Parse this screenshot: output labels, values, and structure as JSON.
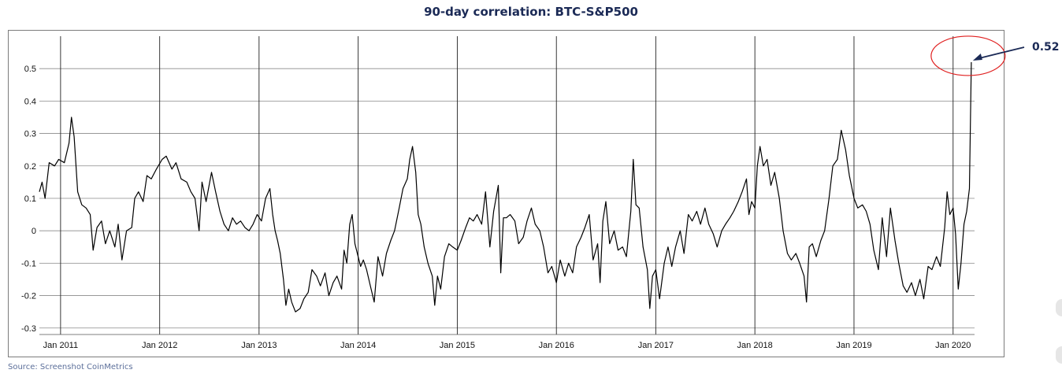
{
  "chart_data": {
    "type": "line",
    "title": "90-day correlation: BTC-S&P500",
    "xlabel": "",
    "ylabel": "",
    "x_ticks": [
      "Jan 2011",
      "Jan 2012",
      "Jan 2013",
      "Jan 2014",
      "Jan 2015",
      "Jan 2016",
      "Jan 2017",
      "Jan 2018",
      "Jan 2019",
      "Jan 2020"
    ],
    "y_ticks": [
      "0.5",
      "0.4",
      "0.3",
      "0.2",
      "0.1",
      "0",
      "-0.1",
      "-0.2",
      "-0.3"
    ],
    "ylim": [
      -0.32,
      0.6
    ],
    "xlim": [
      "2010-10-15",
      "2020-03-20"
    ],
    "grid": true,
    "series": [
      {
        "values": [
          [
            "2010-10-15",
            0.12
          ],
          [
            "2010-10-25",
            0.15
          ],
          [
            "2010-11-05",
            0.1
          ],
          [
            "2010-11-20",
            0.21
          ],
          [
            "2010-12-10",
            0.2
          ],
          [
            "2010-12-25",
            0.22
          ],
          [
            "2011-01-15",
            0.21
          ],
          [
            "2011-02-01",
            0.27
          ],
          [
            "2011-02-10",
            0.35
          ],
          [
            "2011-02-20",
            0.29
          ],
          [
            "2011-03-05",
            0.12
          ],
          [
            "2011-03-20",
            0.08
          ],
          [
            "2011-04-05",
            0.07
          ],
          [
            "2011-04-20",
            0.05
          ],
          [
            "2011-05-01",
            -0.06
          ],
          [
            "2011-05-15",
            0.01
          ],
          [
            "2011-06-01",
            0.03
          ],
          [
            "2011-06-15",
            -0.04
          ],
          [
            "2011-07-01",
            0.0
          ],
          [
            "2011-07-20",
            -0.05
          ],
          [
            "2011-08-01",
            0.02
          ],
          [
            "2011-08-15",
            -0.09
          ],
          [
            "2011-09-01",
            0.0
          ],
          [
            "2011-09-20",
            0.01
          ],
          [
            "2011-10-01",
            0.1
          ],
          [
            "2011-10-15",
            0.12
          ],
          [
            "2011-11-01",
            0.09
          ],
          [
            "2011-11-15",
            0.17
          ],
          [
            "2011-12-01",
            0.16
          ],
          [
            "2011-12-20",
            0.19
          ],
          [
            "2012-01-10",
            0.22
          ],
          [
            "2012-01-25",
            0.23
          ],
          [
            "2012-02-15",
            0.19
          ],
          [
            "2012-03-01",
            0.21
          ],
          [
            "2012-03-20",
            0.16
          ],
          [
            "2012-04-10",
            0.15
          ],
          [
            "2012-04-25",
            0.12
          ],
          [
            "2012-05-10",
            0.1
          ],
          [
            "2012-05-25",
            0.0
          ],
          [
            "2012-06-05",
            0.15
          ],
          [
            "2012-06-20",
            0.09
          ],
          [
            "2012-07-10",
            0.18
          ],
          [
            "2012-07-25",
            0.12
          ],
          [
            "2012-08-10",
            0.06
          ],
          [
            "2012-08-25",
            0.02
          ],
          [
            "2012-09-10",
            0.0
          ],
          [
            "2012-09-25",
            0.04
          ],
          [
            "2012-10-10",
            0.02
          ],
          [
            "2012-10-25",
            0.03
          ],
          [
            "2012-11-10",
            0.01
          ],
          [
            "2012-11-25",
            0.0
          ],
          [
            "2012-12-10",
            0.02
          ],
          [
            "2012-12-25",
            0.05
          ],
          [
            "2013-01-10",
            0.03
          ],
          [
            "2013-01-25",
            0.1
          ],
          [
            "2013-02-10",
            0.13
          ],
          [
            "2013-02-20",
            0.05
          ],
          [
            "2013-03-01",
            0.0
          ],
          [
            "2013-03-10",
            -0.03
          ],
          [
            "2013-03-20",
            -0.07
          ],
          [
            "2013-04-01",
            -0.15
          ],
          [
            "2013-04-10",
            -0.23
          ],
          [
            "2013-04-20",
            -0.18
          ],
          [
            "2013-05-01",
            -0.22
          ],
          [
            "2013-05-15",
            -0.25
          ],
          [
            "2013-06-01",
            -0.24
          ],
          [
            "2013-06-15",
            -0.21
          ],
          [
            "2013-07-01",
            -0.19
          ],
          [
            "2013-07-15",
            -0.12
          ],
          [
            "2013-08-01",
            -0.14
          ],
          [
            "2013-08-15",
            -0.17
          ],
          [
            "2013-09-01",
            -0.13
          ],
          [
            "2013-09-15",
            -0.2
          ],
          [
            "2013-10-01",
            -0.16
          ],
          [
            "2013-10-15",
            -0.14
          ],
          [
            "2013-11-01",
            -0.18
          ],
          [
            "2013-11-10",
            -0.06
          ],
          [
            "2013-11-20",
            -0.1
          ],
          [
            "2013-12-01",
            0.02
          ],
          [
            "2013-12-10",
            0.05
          ],
          [
            "2013-12-20",
            -0.04
          ],
          [
            "2014-01-01",
            -0.08
          ],
          [
            "2014-01-10",
            -0.11
          ],
          [
            "2014-01-20",
            -0.09
          ],
          [
            "2014-02-01",
            -0.12
          ],
          [
            "2014-02-15",
            -0.17
          ],
          [
            "2014-03-01",
            -0.22
          ],
          [
            "2014-03-15",
            -0.08
          ],
          [
            "2014-04-01",
            -0.14
          ],
          [
            "2014-04-15",
            -0.07
          ],
          [
            "2014-05-01",
            -0.03
          ],
          [
            "2014-05-15",
            0.0
          ],
          [
            "2014-06-01",
            0.07
          ],
          [
            "2014-06-15",
            0.13
          ],
          [
            "2014-07-01",
            0.16
          ],
          [
            "2014-07-10",
            0.22
          ],
          [
            "2014-07-20",
            0.26
          ],
          [
            "2014-08-01",
            0.18
          ],
          [
            "2014-08-10",
            0.05
          ],
          [
            "2014-08-20",
            0.02
          ],
          [
            "2014-09-01",
            -0.05
          ],
          [
            "2014-09-15",
            -0.1
          ],
          [
            "2014-10-01",
            -0.14
          ],
          [
            "2014-10-10",
            -0.23
          ],
          [
            "2014-10-20",
            -0.14
          ],
          [
            "2014-11-01",
            -0.18
          ],
          [
            "2014-11-15",
            -0.08
          ],
          [
            "2014-12-01",
            -0.04
          ],
          [
            "2014-12-15",
            -0.05
          ],
          [
            "2015-01-01",
            -0.06
          ],
          [
            "2015-01-15",
            -0.03
          ],
          [
            "2015-02-01",
            0.01
          ],
          [
            "2015-02-15",
            0.04
          ],
          [
            "2015-03-01",
            0.03
          ],
          [
            "2015-03-15",
            0.05
          ],
          [
            "2015-04-01",
            0.02
          ],
          [
            "2015-04-15",
            0.12
          ],
          [
            "2015-05-01",
            -0.05
          ],
          [
            "2015-05-15",
            0.06
          ],
          [
            "2015-06-01",
            0.14
          ],
          [
            "2015-06-10",
            -0.13
          ],
          [
            "2015-06-20",
            0.04
          ],
          [
            "2015-07-01",
            0.04
          ],
          [
            "2015-07-15",
            0.05
          ],
          [
            "2015-08-01",
            0.03
          ],
          [
            "2015-08-15",
            -0.04
          ],
          [
            "2015-09-01",
            -0.02
          ],
          [
            "2015-09-15",
            0.03
          ],
          [
            "2015-10-01",
            0.07
          ],
          [
            "2015-10-15",
            0.02
          ],
          [
            "2015-11-01",
            0.0
          ],
          [
            "2015-11-15",
            -0.05
          ],
          [
            "2015-12-01",
            -0.13
          ],
          [
            "2015-12-15",
            -0.11
          ],
          [
            "2016-01-01",
            -0.16
          ],
          [
            "2016-01-15",
            -0.09
          ],
          [
            "2016-02-01",
            -0.14
          ],
          [
            "2016-02-15",
            -0.1
          ],
          [
            "2016-03-01",
            -0.13
          ],
          [
            "2016-03-15",
            -0.05
          ],
          [
            "2016-04-01",
            -0.02
          ],
          [
            "2016-04-15",
            0.01
          ],
          [
            "2016-05-01",
            0.05
          ],
          [
            "2016-05-15",
            -0.09
          ],
          [
            "2016-06-01",
            -0.04
          ],
          [
            "2016-06-10",
            -0.16
          ],
          [
            "2016-06-20",
            0.03
          ],
          [
            "2016-07-01",
            0.09
          ],
          [
            "2016-07-15",
            -0.04
          ],
          [
            "2016-08-01",
            0.0
          ],
          [
            "2016-08-15",
            -0.06
          ],
          [
            "2016-09-01",
            -0.05
          ],
          [
            "2016-09-15",
            -0.08
          ],
          [
            "2016-10-01",
            0.06
          ],
          [
            "2016-10-10",
            0.22
          ],
          [
            "2016-10-20",
            0.08
          ],
          [
            "2016-11-01",
            0.07
          ],
          [
            "2016-11-15",
            -0.05
          ],
          [
            "2016-12-01",
            -0.12
          ],
          [
            "2016-12-10",
            -0.24
          ],
          [
            "2016-12-20",
            -0.14
          ],
          [
            "2017-01-01",
            -0.12
          ],
          [
            "2017-01-15",
            -0.21
          ],
          [
            "2017-02-01",
            -0.1
          ],
          [
            "2017-02-15",
            -0.05
          ],
          [
            "2017-03-01",
            -0.11
          ],
          [
            "2017-03-15",
            -0.05
          ],
          [
            "2017-04-01",
            0.0
          ],
          [
            "2017-04-15",
            -0.07
          ],
          [
            "2017-05-01",
            0.05
          ],
          [
            "2017-05-15",
            0.03
          ],
          [
            "2017-06-01",
            0.06
          ],
          [
            "2017-06-15",
            0.02
          ],
          [
            "2017-07-01",
            0.07
          ],
          [
            "2017-07-15",
            0.02
          ],
          [
            "2017-08-01",
            -0.01
          ],
          [
            "2017-08-15",
            -0.05
          ],
          [
            "2017-09-01",
            0.0
          ],
          [
            "2017-09-15",
            0.02
          ],
          [
            "2017-10-01",
            0.04
          ],
          [
            "2017-10-15",
            0.06
          ],
          [
            "2017-11-01",
            0.09
          ],
          [
            "2017-11-15",
            0.12
          ],
          [
            "2017-12-01",
            0.16
          ],
          [
            "2017-12-10",
            0.05
          ],
          [
            "2017-12-20",
            0.09
          ],
          [
            "2018-01-01",
            0.07
          ],
          [
            "2018-01-10",
            0.2
          ],
          [
            "2018-01-20",
            0.26
          ],
          [
            "2018-02-01",
            0.2
          ],
          [
            "2018-02-15",
            0.22
          ],
          [
            "2018-03-01",
            0.14
          ],
          [
            "2018-03-15",
            0.18
          ],
          [
            "2018-04-01",
            0.1
          ],
          [
            "2018-04-15",
            0.0
          ],
          [
            "2018-05-01",
            -0.07
          ],
          [
            "2018-05-15",
            -0.09
          ],
          [
            "2018-06-01",
            -0.07
          ],
          [
            "2018-06-15",
            -0.1
          ],
          [
            "2018-07-01",
            -0.14
          ],
          [
            "2018-07-10",
            -0.22
          ],
          [
            "2018-07-20",
            -0.05
          ],
          [
            "2018-08-01",
            -0.04
          ],
          [
            "2018-08-15",
            -0.08
          ],
          [
            "2018-09-01",
            -0.03
          ],
          [
            "2018-09-15",
            0.0
          ],
          [
            "2018-10-01",
            0.1
          ],
          [
            "2018-10-15",
            0.2
          ],
          [
            "2018-11-01",
            0.22
          ],
          [
            "2018-11-15",
            0.31
          ],
          [
            "2018-12-01",
            0.25
          ],
          [
            "2018-12-15",
            0.17
          ],
          [
            "2019-01-01",
            0.1
          ],
          [
            "2019-01-15",
            0.07
          ],
          [
            "2019-02-01",
            0.08
          ],
          [
            "2019-02-15",
            0.06
          ],
          [
            "2019-03-01",
            0.02
          ],
          [
            "2019-03-15",
            -0.06
          ],
          [
            "2019-04-01",
            -0.12
          ],
          [
            "2019-04-15",
            0.04
          ],
          [
            "2019-05-01",
            -0.08
          ],
          [
            "2019-05-15",
            0.07
          ],
          [
            "2019-06-01",
            -0.03
          ],
          [
            "2019-06-15",
            -0.1
          ],
          [
            "2019-07-01",
            -0.17
          ],
          [
            "2019-07-15",
            -0.19
          ],
          [
            "2019-08-01",
            -0.16
          ],
          [
            "2019-08-15",
            -0.2
          ],
          [
            "2019-09-01",
            -0.15
          ],
          [
            "2019-09-15",
            -0.21
          ],
          [
            "2019-10-01",
            -0.11
          ],
          [
            "2019-10-15",
            -0.12
          ],
          [
            "2019-11-01",
            -0.08
          ],
          [
            "2019-11-15",
            -0.11
          ],
          [
            "2019-12-01",
            0.01
          ],
          [
            "2019-12-10",
            0.12
          ],
          [
            "2019-12-20",
            0.05
          ],
          [
            "2020-01-01",
            0.07
          ],
          [
            "2020-01-10",
            -0.01
          ],
          [
            "2020-01-20",
            -0.18
          ],
          [
            "2020-01-30",
            -0.1
          ],
          [
            "2020-02-10",
            0.02
          ],
          [
            "2020-02-20",
            0.06
          ],
          [
            "2020-03-01",
            0.13
          ],
          [
            "2020-03-08",
            0.52
          ]
        ]
      }
    ],
    "annotations": [
      {
        "text": "0.52",
        "x": "2020-03-08",
        "y": 0.52,
        "shape": "circled-endpoint-with-arrow"
      }
    ],
    "colors": {
      "line": "#000000",
      "grid": "#8a8a8a",
      "title": "#1b2a56",
      "annotation_arrow": "#1b2a56",
      "annotation_circle": "#e02020",
      "source_text": "#5c6f9a"
    }
  },
  "source_note": "Source: Screenshot CoinMetrics"
}
